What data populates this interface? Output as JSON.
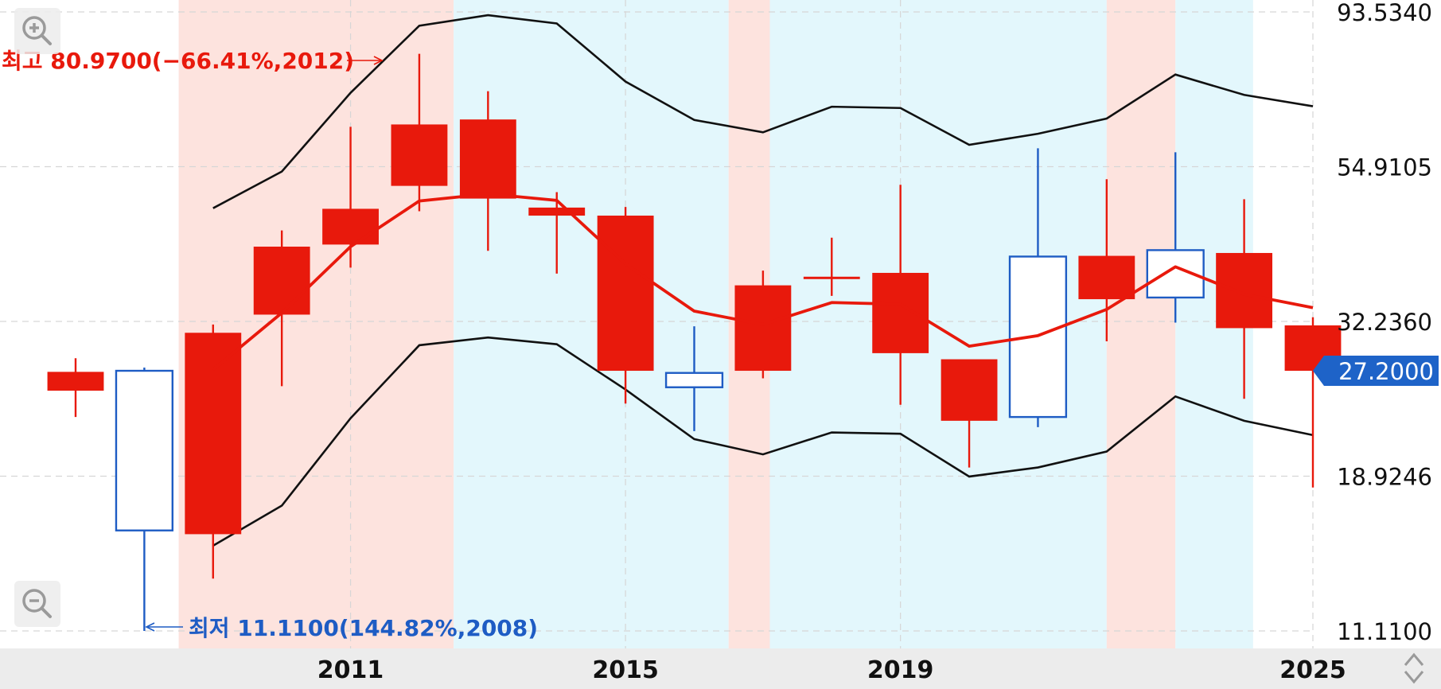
{
  "chart_data": {
    "type": "candlestick",
    "x_ticks": [
      "2011",
      "2015",
      "2019",
      "2025"
    ],
    "y_ticks": [
      "93.5340",
      "54.9105",
      "32.2360",
      "18.9246",
      "11.1100"
    ],
    "y_scale": "log",
    "ylim": [
      11.11,
      93.534
    ],
    "grid": true,
    "current_price_label": "27.2000",
    "current_price": 27.2,
    "high_annotation": "최고 80.9700(−66.41%,2012)",
    "low_annotation": "최저 11.1100(144.82%,2008)",
    "candles": [
      {
        "year": 2007,
        "open": 25.4,
        "high": 28.4,
        "low": 23.2,
        "close": 27.1
      },
      {
        "year": 2008,
        "open": 27.2,
        "high": 27.5,
        "low": 11.11,
        "close": 15.7
      },
      {
        "year": 2009,
        "open": 15.5,
        "high": 31.9,
        "low": 13.3,
        "close": 31.0
      },
      {
        "year": 2010,
        "open": 33.0,
        "high": 44.1,
        "low": 25.8,
        "close": 41.7
      },
      {
        "year": 2011,
        "open": 42.0,
        "high": 63.0,
        "low": 38.8,
        "close": 47.5
      },
      {
        "year": 2012,
        "open": 51.4,
        "high": 80.97,
        "low": 47.1,
        "close": 63.5
      },
      {
        "year": 2013,
        "open": 49.2,
        "high": 71.2,
        "low": 41.1,
        "close": 64.6
      },
      {
        "year": 2014,
        "open": 46.4,
        "high": 50.3,
        "low": 38.0,
        "close": 47.7
      },
      {
        "year": 2015,
        "open": 27.2,
        "high": 47.8,
        "low": 24.3,
        "close": 46.4
      },
      {
        "year": 2016,
        "open": 27.0,
        "high": 31.7,
        "low": 22.1,
        "close": 25.7
      },
      {
        "year": 2017,
        "open": 27.2,
        "high": 38.4,
        "low": 26.5,
        "close": 36.5
      },
      {
        "year": 2018,
        "open": 37.6,
        "high": 43.0,
        "low": 35.2,
        "close": 37.6
      },
      {
        "year": 2019,
        "open": 28.9,
        "high": 51.6,
        "low": 24.2,
        "close": 38.1
      },
      {
        "year": 2020,
        "open": 22.9,
        "high": 27.7,
        "low": 19.5,
        "close": 28.3
      },
      {
        "year": 2021,
        "open": 40.3,
        "high": 58.5,
        "low": 22.4,
        "close": 23.2
      },
      {
        "year": 2022,
        "open": 34.8,
        "high": 52.6,
        "low": 30.1,
        "close": 40.4
      },
      {
        "year": 2023,
        "open": 41.2,
        "high": 57.7,
        "low": 32.1,
        "close": 35.0
      },
      {
        "year": 2024,
        "open": 31.5,
        "high": 49.1,
        "low": 24.7,
        "close": 40.8
      },
      {
        "year": 2025,
        "open": 27.2,
        "high": 32.7,
        "low": 18.2,
        "close": 31.8
      }
    ],
    "moving_average": [
      {
        "year": 2009,
        "value": 27.3
      },
      {
        "year": 2010,
        "value": 33.2
      },
      {
        "year": 2011,
        "value": 41.7
      },
      {
        "year": 2012,
        "value": 48.8
      },
      {
        "year": 2013,
        "value": 50.0
      },
      {
        "year": 2014,
        "value": 48.9
      },
      {
        "year": 2015,
        "value": 39.3
      },
      {
        "year": 2016,
        "value": 33.4
      },
      {
        "year": 2017,
        "value": 31.9
      },
      {
        "year": 2018,
        "value": 34.4
      },
      {
        "year": 2019,
        "value": 34.2
      },
      {
        "year": 2020,
        "value": 29.6
      },
      {
        "year": 2021,
        "value": 30.7
      },
      {
        "year": 2022,
        "value": 33.6
      },
      {
        "year": 2023,
        "value": 38.9
      },
      {
        "year": 2024,
        "value": 35.4
      },
      {
        "year": 2025,
        "value": 33.8
      }
    ],
    "upper_band": [
      {
        "year": 2009,
        "value": 47.6
      },
      {
        "year": 2010,
        "value": 54.0
      },
      {
        "year": 2011,
        "value": 70.8
      },
      {
        "year": 2012,
        "value": 89.2
      },
      {
        "year": 2013,
        "value": 92.5
      },
      {
        "year": 2014,
        "value": 89.9
      },
      {
        "year": 2015,
        "value": 73.6
      },
      {
        "year": 2016,
        "value": 64.5
      },
      {
        "year": 2017,
        "value": 61.8
      },
      {
        "year": 2018,
        "value": 67.5
      },
      {
        "year": 2019,
        "value": 67.2
      },
      {
        "year": 2020,
        "value": 59.2
      },
      {
        "year": 2021,
        "value": 61.5
      },
      {
        "year": 2022,
        "value": 64.8
      },
      {
        "year": 2023,
        "value": 75.4
      },
      {
        "year": 2024,
        "value": 70.3
      },
      {
        "year": 2025,
        "value": 67.6
      }
    ],
    "lower_band": [
      {
        "year": 2009,
        "value": 14.9
      },
      {
        "year": 2010,
        "value": 17.1
      },
      {
        "year": 2011,
        "value": 23.1
      },
      {
        "year": 2012,
        "value": 29.7
      },
      {
        "year": 2013,
        "value": 30.5
      },
      {
        "year": 2014,
        "value": 29.8
      },
      {
        "year": 2015,
        "value": 25.5
      },
      {
        "year": 2016,
        "value": 21.5
      },
      {
        "year": 2017,
        "value": 20.4
      },
      {
        "year": 2018,
        "value": 22.0
      },
      {
        "year": 2019,
        "value": 21.9
      },
      {
        "year": 2020,
        "value": 18.9
      },
      {
        "year": 2021,
        "value": 19.5
      },
      {
        "year": 2022,
        "value": 20.6
      },
      {
        "year": 2023,
        "value": 24.9
      },
      {
        "year": 2024,
        "value": 22.9
      },
      {
        "year": 2025,
        "value": 21.8
      }
    ],
    "background_bands": [
      {
        "from": 2008.5,
        "to": 2012.5,
        "color": "#fde3de"
      },
      {
        "from": 2012.5,
        "to": 2016.5,
        "color": "#e3f7fc"
      },
      {
        "from": 2016.5,
        "to": 2017.1,
        "color": "#fde3de"
      },
      {
        "from": 2017.1,
        "to": 2022.0,
        "color": "#e3f7fc"
      },
      {
        "from": 2022.0,
        "to": 2023.0,
        "color": "#fde3de"
      },
      {
        "from": 2023.0,
        "to": 2024.13,
        "color": "#e3f7fc"
      }
    ],
    "colors": {
      "up": "#e8190c",
      "down": "#1e5cc4",
      "moving_average": "#e8190c",
      "band": "#111111",
      "price_tag": "#1e63c8",
      "grid": "#d6d6d6",
      "axis_bar": "#ececec"
    }
  },
  "controls": {
    "zoom_in_icon": "zoom-in-icon",
    "zoom_out_icon": "zoom-out-icon",
    "scroll_icon": "up-down-arrows-icon"
  }
}
